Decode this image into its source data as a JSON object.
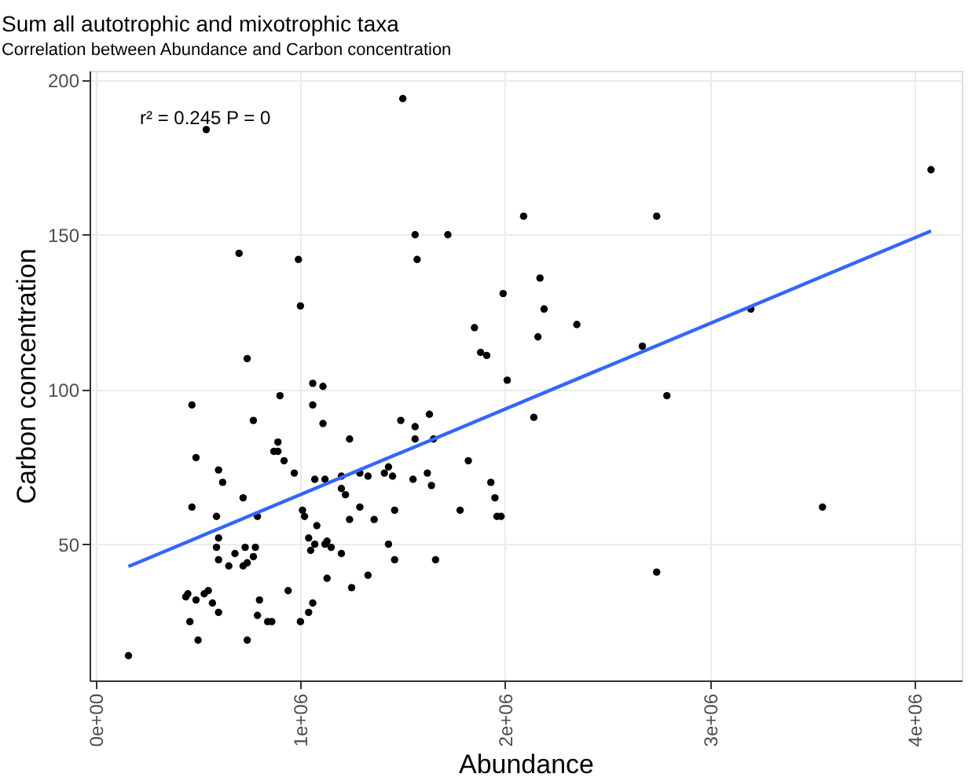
{
  "chart_data": {
    "type": "scatter",
    "title": "Sum all autotrophic and mixotrophic taxa",
    "subtitle": "Correlation between Abundance and Carbon concentration",
    "xlabel": "Abundance",
    "ylabel": "Carbon concentration",
    "annotations": [
      "r² = 0.245  P = 0"
    ],
    "xlim": [
      -30000,
      4230000
    ],
    "ylim": [
      6,
      203
    ],
    "xticks": [
      {
        "value": 0,
        "label": "0e+00"
      },
      {
        "value": 1000000,
        "label": "1e+06"
      },
      {
        "value": 2000000,
        "label": "2e+06"
      },
      {
        "value": 3000000,
        "label": "3e+06"
      },
      {
        "value": 4000000,
        "label": "4e+06"
      }
    ],
    "yticks": [
      50,
      100,
      150,
      200
    ],
    "grid": true,
    "series": [
      {
        "marker": "circle",
        "color": "#000000",
        "x": [
          540000,
          1500000,
          700000,
          990000,
          1000000,
          740000,
          1560000,
          1720000,
          1570000,
          1990000,
          1850000,
          1880000,
          1910000,
          4080000,
          2090000,
          2740000,
          2170000,
          2190000,
          2350000,
          2160000,
          3200000,
          2670000,
          2010000,
          2790000,
          2140000,
          3550000,
          2740000,
          470000,
          900000,
          1060000,
          1110000,
          1060000,
          770000,
          1110000,
          490000,
          890000,
          870000,
          890000,
          920000,
          1240000,
          1490000,
          1630000,
          1560000,
          1650000,
          1560000,
          1820000,
          600000,
          620000,
          970000,
          1070000,
          1120000,
          1200000,
          1290000,
          1330000,
          1410000,
          1430000,
          1450000,
          1550000,
          1620000,
          1640000,
          1930000,
          1950000,
          1960000,
          1980000,
          1200000,
          1220000,
          470000,
          590000,
          720000,
          790000,
          1010000,
          1020000,
          1080000,
          1240000,
          1290000,
          1360000,
          1460000,
          1780000,
          600000,
          590000,
          600000,
          650000,
          680000,
          720000,
          740000,
          730000,
          780000,
          770000,
          1040000,
          1050000,
          1070000,
          1120000,
          1130000,
          1150000,
          1200000,
          1430000,
          1460000,
          1660000,
          1330000,
          1250000,
          1130000,
          940000,
          1060000,
          1040000,
          1000000,
          800000,
          790000,
          840000,
          860000,
          740000,
          440000,
          450000,
          530000,
          550000,
          490000,
          570000,
          600000,
          460000,
          500000,
          160000
        ],
        "values": [
          184,
          194,
          144,
          142,
          127,
          110,
          150,
          150,
          142,
          131,
          120,
          112,
          111,
          171,
          156,
          156,
          136,
          126,
          121,
          117,
          126,
          114,
          103,
          98,
          91,
          62,
          41,
          95,
          98,
          102,
          101,
          95,
          90,
          89,
          78,
          83,
          80,
          80,
          77,
          84,
          90,
          92,
          88,
          84,
          84,
          77,
          74,
          70,
          73,
          71,
          71,
          72,
          73,
          72,
          73,
          75,
          72,
          71,
          73,
          69,
          70,
          65,
          59,
          59,
          68,
          66,
          62,
          59,
          65,
          59,
          61,
          59,
          56,
          58,
          62,
          58,
          61,
          61,
          52,
          49,
          45,
          43,
          47,
          43,
          44,
          49,
          49,
          46,
          52,
          48,
          50,
          50,
          51,
          49,
          47,
          50,
          45,
          45,
          40,
          36,
          39,
          35,
          31,
          28,
          25,
          32,
          27,
          25,
          25,
          19,
          33,
          34,
          34,
          35,
          32,
          31,
          28,
          25,
          19,
          14
        ]
      },
      {
        "type": "line",
        "color": "#3366ff",
        "x": [
          160000,
          4080000
        ],
        "values": [
          42.8,
          151.2
        ]
      }
    ]
  }
}
